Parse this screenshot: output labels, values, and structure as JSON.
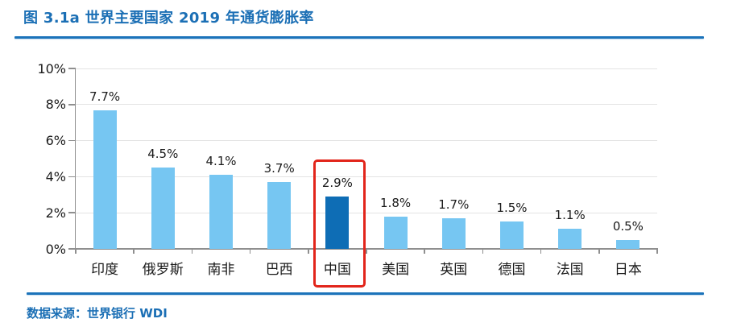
{
  "figure": {
    "title": "图 3.1a 世界主要国家 2019 年通货膨胀率",
    "source": "数据来源：世界银行 WDI"
  },
  "chart_data": {
    "type": "bar",
    "title": "图 3.1a 世界主要国家 2019 年通货膨胀率",
    "categories": [
      "印度",
      "俄罗斯",
      "南非",
      "巴西",
      "中国",
      "美国",
      "英国",
      "德国",
      "法国",
      "日本"
    ],
    "values": [
      7.7,
      4.5,
      4.1,
      3.7,
      2.9,
      1.8,
      1.7,
      1.5,
      1.1,
      0.5
    ],
    "data_labels": [
      "7.7%",
      "4.5%",
      "4.1%",
      "3.7%",
      "2.9%",
      "1.8%",
      "1.7%",
      "1.5%",
      "1.1%",
      "0.5%"
    ],
    "y_tick_labels": [
      "10%",
      "8%",
      "6%",
      "4%",
      "2%",
      "0%"
    ],
    "ylim": [
      0,
      10
    ],
    "y_tick_step": 2,
    "grid": true,
    "legend": false,
    "xlabel": "",
    "ylabel": "",
    "highlight": {
      "index": 4,
      "category": "中国",
      "style": "dark-bar-with-red-box"
    },
    "colors": {
      "bar": "#76C6F2",
      "highlight_bar": "#0E6DB5",
      "highlight_box": "#E2251B",
      "accent_blue": "#1B6FB5",
      "divider_blue": "#1B73BA",
      "gridline": "#E3E3E3",
      "axis": "#8F8F8F",
      "label_text": "#1A1A1A"
    }
  }
}
